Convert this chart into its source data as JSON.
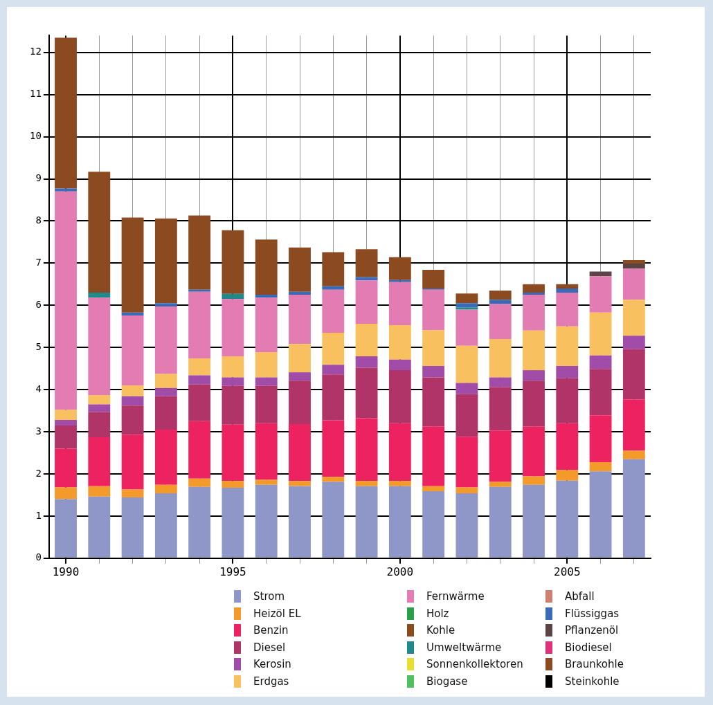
{
  "chart_data": {
    "type": "bar",
    "stacked": true,
    "grid": true,
    "legend": "bottom",
    "categories": [
      "1990",
      null,
      null,
      null,
      null,
      "1995",
      null,
      null,
      null,
      null,
      "2000",
      null,
      null,
      null,
      null,
      "2005",
      null,
      null
    ],
    "ylim": [
      0,
      12.4
    ],
    "yticks": [
      0,
      1,
      2,
      3,
      4,
      5,
      6,
      7,
      8,
      9,
      10,
      11,
      12
    ],
    "series": [
      {
        "name": "Strom",
        "color": "#8f96c8",
        "values": [
          1.4,
          1.46,
          1.44,
          1.54,
          1.69,
          1.67,
          1.74,
          1.71,
          1.81,
          1.71,
          1.71,
          1.59,
          1.54,
          1.69,
          1.74,
          1.84,
          2.06,
          2.35
        ]
      },
      {
        "name": "Heizöl EL",
        "color": "#f39a2a",
        "values": [
          0.28,
          0.25,
          0.19,
          0.2,
          0.2,
          0.16,
          0.12,
          0.12,
          0.12,
          0.12,
          0.12,
          0.12,
          0.14,
          0.12,
          0.2,
          0.25,
          0.22,
          0.2
        ]
      },
      {
        "name": "Benzin",
        "color": "#ec2360",
        "values": [
          0.92,
          1.16,
          1.3,
          1.31,
          1.36,
          1.34,
          1.34,
          1.35,
          1.34,
          1.49,
          1.37,
          1.41,
          1.2,
          1.22,
          1.18,
          1.11,
          1.11,
          1.22
        ]
      },
      {
        "name": "Diesel",
        "color": "#b03468",
        "values": [
          0.55,
          0.6,
          0.69,
          0.79,
          0.87,
          0.92,
          0.89,
          1.03,
          1.09,
          1.2,
          1.26,
          1.17,
          1.01,
          1.03,
          1.09,
          1.07,
          1.1,
          1.19
        ]
      },
      {
        "name": "Kerosin",
        "color": "#a04ca8",
        "values": [
          0.13,
          0.18,
          0.22,
          0.2,
          0.22,
          0.2,
          0.2,
          0.2,
          0.23,
          0.27,
          0.25,
          0.27,
          0.27,
          0.23,
          0.25,
          0.29,
          0.32,
          0.32
        ]
      },
      {
        "name": "Erdgas",
        "color": "#f8c05e",
        "values": [
          0.24,
          0.22,
          0.26,
          0.33,
          0.4,
          0.5,
          0.6,
          0.67,
          0.76,
          0.77,
          0.82,
          0.85,
          0.88,
          0.91,
          0.94,
          0.94,
          1.02,
          0.85
        ]
      },
      {
        "name": "Fernwärme",
        "color": "#e37cb3",
        "values": [
          5.18,
          2.31,
          1.66,
          1.6,
          1.58,
          1.36,
          1.29,
          1.17,
          1.02,
          1.03,
          1.02,
          0.96,
          0.86,
          0.83,
          0.85,
          0.8,
          0.86,
          0.74
        ]
      },
      {
        "name": "Holz",
        "color": "#2aa04a",
        "values": [
          0,
          0,
          0,
          0,
          0,
          0,
          0,
          0,
          0,
          0,
          0,
          0,
          0,
          0,
          0,
          0,
          0,
          0
        ]
      },
      {
        "name": "Kohle",
        "color": "#8b4a1e",
        "values": [
          0,
          0,
          0,
          0,
          0,
          0,
          0,
          0,
          0,
          0,
          0,
          0,
          0,
          0,
          0,
          0,
          0,
          0
        ]
      },
      {
        "name": "Umweltwärme",
        "color": "#1e8a8c",
        "values": [
          0,
          0.12,
          0,
          0,
          0,
          0.12,
          0,
          0,
          0,
          0,
          0,
          0,
          0.05,
          0,
          0,
          0,
          0,
          0
        ]
      },
      {
        "name": "Sonnenkollektoren",
        "color": "#e8e030",
        "values": [
          0,
          0,
          0,
          0,
          0,
          0,
          0,
          0,
          0,
          0,
          0,
          0,
          0,
          0,
          0,
          0,
          0,
          0
        ]
      },
      {
        "name": "Biogase",
        "color": "#50c060",
        "values": [
          0,
          0,
          0,
          0,
          0,
          0,
          0,
          0,
          0,
          0,
          0,
          0,
          0,
          0,
          0,
          0,
          0,
          0
        ]
      },
      {
        "name": "Abfall",
        "color": "#d08070",
        "values": [
          0,
          0,
          0,
          0,
          0,
          0,
          0,
          0,
          0,
          0,
          0,
          0,
          0,
          0,
          0,
          0,
          0,
          0
        ]
      },
      {
        "name": "Flüssiggas",
        "color": "#3a6ab8",
        "values": [
          0.07,
          0,
          0.07,
          0.08,
          0.05,
          0,
          0.07,
          0.07,
          0.08,
          0.08,
          0.05,
          0.03,
          0.1,
          0.1,
          0.05,
          0.1,
          0,
          0
        ]
      },
      {
        "name": "Pflanzenöl",
        "color": "#5a4444",
        "values": [
          0,
          0,
          0,
          0,
          0,
          0,
          0,
          0,
          0,
          0,
          0,
          0,
          0,
          0,
          0,
          0,
          0.11,
          0.12
        ]
      },
      {
        "name": "Biodiesel",
        "color": "#e0307a",
        "values": [
          0,
          0,
          0,
          0,
          0,
          0,
          0,
          0,
          0,
          0,
          0,
          0,
          0,
          0,
          0,
          0,
          0,
          0
        ]
      },
      {
        "name": "Braunkohle",
        "color": "#8b4a20",
        "values": [
          3.58,
          2.87,
          2.25,
          2.01,
          1.76,
          1.51,
          1.31,
          1.05,
          0.81,
          0.66,
          0.54,
          0.44,
          0.23,
          0.22,
          0.2,
          0.1,
          0,
          0.08
        ]
      },
      {
        "name": "Steinkohle",
        "color": "#000000",
        "values": [
          0,
          0,
          0,
          0,
          0,
          0,
          0,
          0,
          0,
          0,
          0,
          0,
          0,
          0,
          0,
          0,
          0,
          0
        ]
      }
    ]
  }
}
